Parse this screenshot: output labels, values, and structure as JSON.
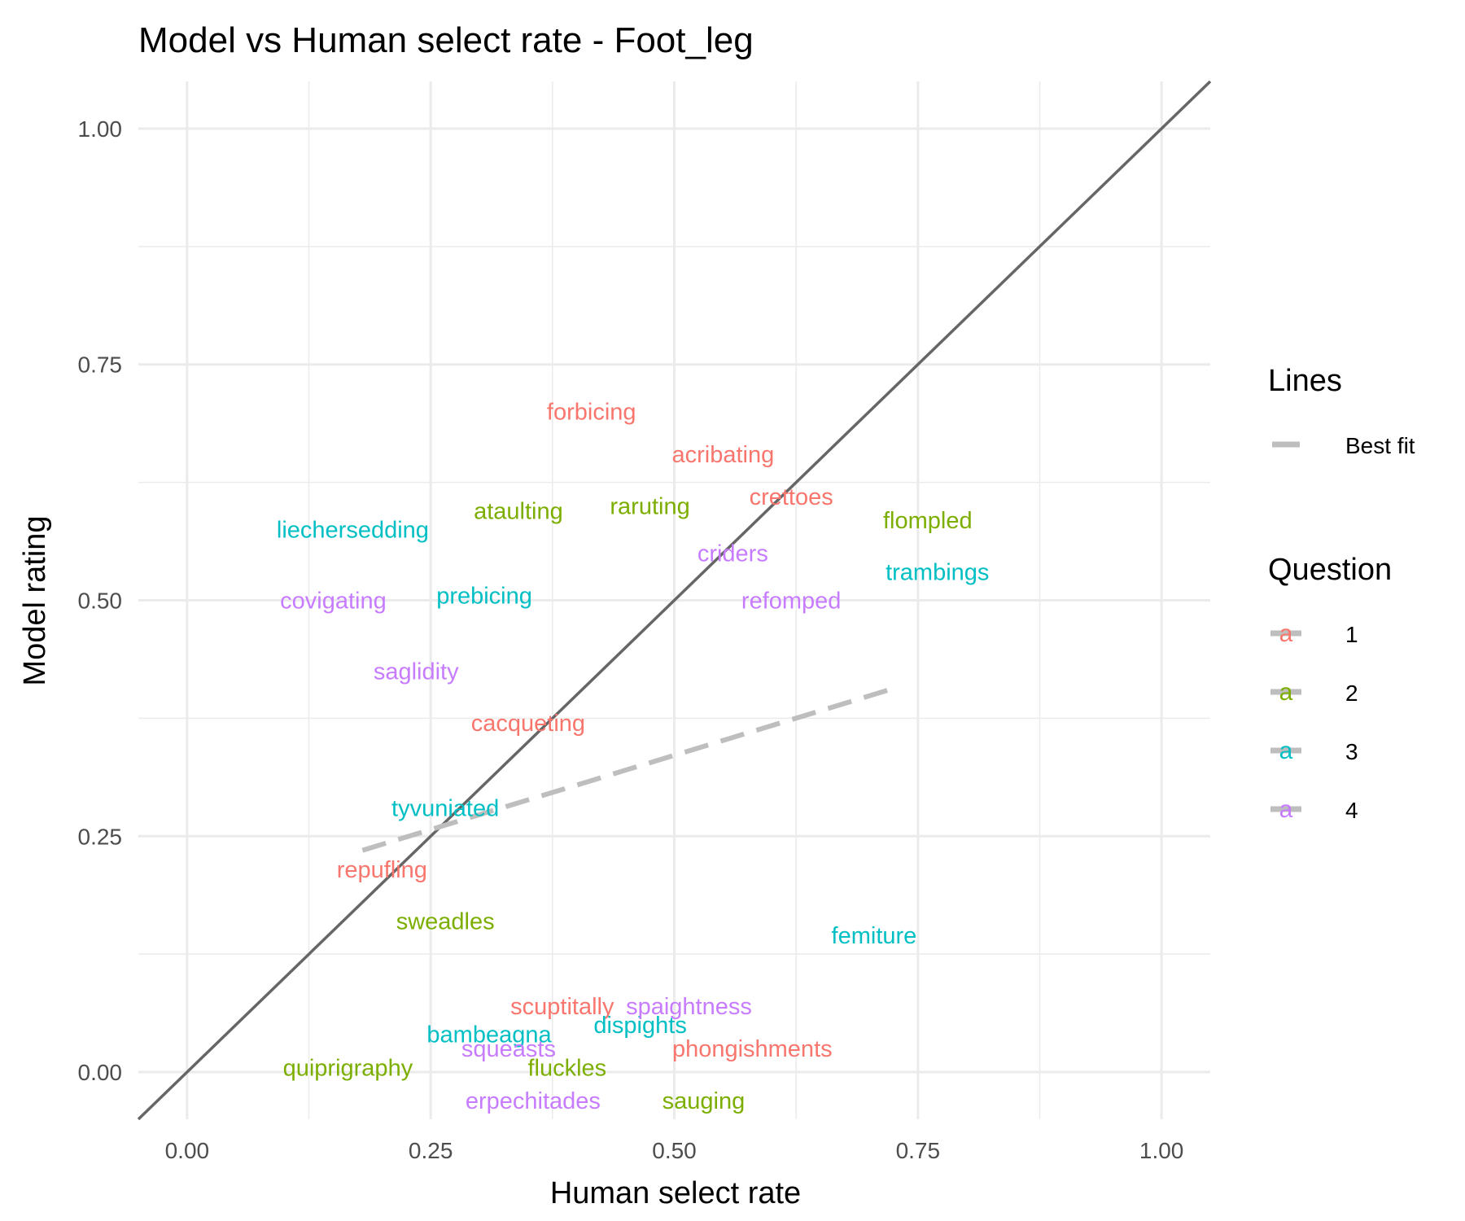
{
  "chart_data": {
    "type": "scatter",
    "title": "Model vs Human select rate - Foot_leg",
    "xlabel": "Human select rate",
    "ylabel": "Model rating",
    "xlim": [
      -0.05,
      1.05
    ],
    "ylim": [
      -0.05,
      1.05
    ],
    "x_ticks": [
      "0.00",
      "0.25",
      "0.50",
      "0.75",
      "1.00"
    ],
    "y_ticks": [
      "0.00",
      "0.25",
      "0.50",
      "0.75",
      "1.00"
    ],
    "grid": true,
    "reference_line": {
      "name": "y = x",
      "color": "#666666"
    },
    "best_fit": {
      "x": [
        0.18,
        0.72
      ],
      "y": [
        0.235,
        0.405
      ],
      "color": "#bebebe",
      "style": "dashed"
    },
    "series": [
      {
        "name": "1",
        "color": "#F8766D",
        "points": [
          {
            "label": "forbicing",
            "x": 0.415,
            "y": 0.7
          },
          {
            "label": "acribating",
            "x": 0.55,
            "y": 0.655
          },
          {
            "label": "crettoes",
            "x": 0.62,
            "y": 0.61
          },
          {
            "label": "cacqueting",
            "x": 0.35,
            "y": 0.37
          },
          {
            "label": "repufling",
            "x": 0.2,
            "y": 0.215
          },
          {
            "label": "scuptitally",
            "x": 0.385,
            "y": 0.07
          },
          {
            "label": "phongishments",
            "x": 0.58,
            "y": 0.025
          }
        ]
      },
      {
        "name": "2",
        "color": "#7CAE00",
        "points": [
          {
            "label": "ataulting",
            "x": 0.34,
            "y": 0.595
          },
          {
            "label": "raruting",
            "x": 0.475,
            "y": 0.6
          },
          {
            "label": "flompled",
            "x": 0.76,
            "y": 0.585
          },
          {
            "label": "sweadles",
            "x": 0.265,
            "y": 0.16
          },
          {
            "label": "quiprigraphy",
            "x": 0.165,
            "y": 0.005
          },
          {
            "label": "fluckles",
            "x": 0.39,
            "y": 0.005
          },
          {
            "label": "sauging",
            "x": 0.53,
            "y": -0.03
          }
        ]
      },
      {
        "name": "3",
        "color": "#00BFC4",
        "points": [
          {
            "label": "liechersedding",
            "x": 0.17,
            "y": 0.575
          },
          {
            "label": "trambings",
            "x": 0.77,
            "y": 0.53
          },
          {
            "label": "prebicing",
            "x": 0.305,
            "y": 0.505
          },
          {
            "label": "tyvuniated",
            "x": 0.265,
            "y": 0.28
          },
          {
            "label": "femiture",
            "x": 0.705,
            "y": 0.145
          },
          {
            "label": "dispights",
            "x": 0.465,
            "y": 0.05
          },
          {
            "label": "bambeagna",
            "x": 0.31,
            "y": 0.04
          }
        ]
      },
      {
        "name": "4",
        "color": "#C77CFF",
        "points": [
          {
            "label": "criders",
            "x": 0.56,
            "y": 0.55
          },
          {
            "label": "covigating",
            "x": 0.15,
            "y": 0.5
          },
          {
            "label": "refomped",
            "x": 0.62,
            "y": 0.5
          },
          {
            "label": "saglidity",
            "x": 0.235,
            "y": 0.425
          },
          {
            "label": "spaightness",
            "x": 0.515,
            "y": 0.07
          },
          {
            "label": "squeasts",
            "x": 0.33,
            "y": 0.025
          },
          {
            "label": "erpechitades",
            "x": 0.355,
            "y": -0.03
          }
        ]
      }
    ]
  },
  "legend": {
    "lines_title": "Lines",
    "lines_items": [
      {
        "label": "Best fit",
        "color": "#bebebe"
      }
    ],
    "question_title": "Question",
    "question_key_letter": "a",
    "question_items": [
      {
        "label": "1",
        "color": "#F8766D"
      },
      {
        "label": "2",
        "color": "#7CAE00"
      },
      {
        "label": "3",
        "color": "#00BFC4"
      },
      {
        "label": "4",
        "color": "#C77CFF"
      }
    ]
  }
}
